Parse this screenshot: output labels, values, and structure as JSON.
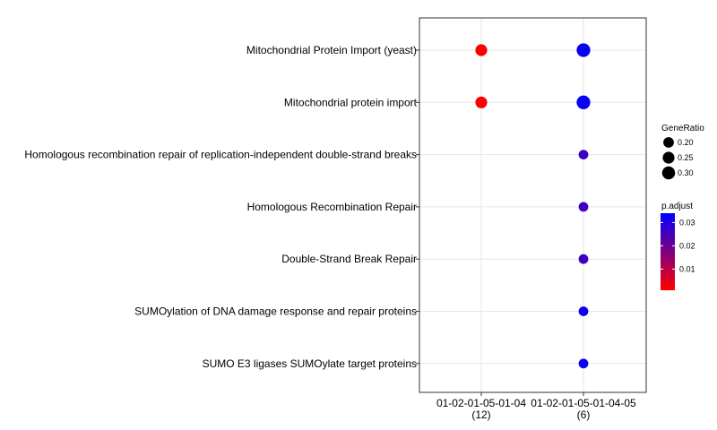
{
  "chart_data": {
    "type": "dotplot",
    "x_categories": [
      "01-02-01-05-01-04\n(12)",
      "01-02-01-05-01-04-05\n(6)"
    ],
    "y_categories": [
      "Mitochondrial Protein Import (yeast)",
      "Mitochondrial protein import",
      "Homologous recombination repair of replication-independent double-strand breaks",
      "Homologous Recombination Repair",
      "Double-Strand Break Repair",
      "SUMOylation of DNA damage response and repair proteins",
      "SUMO E3 ligases SUMOylate target proteins"
    ],
    "points": [
      {
        "x": "01-02-01-05-01-04\n(12)",
        "y": "Mitochondrial Protein Import (yeast)",
        "GeneRatio": 0.25,
        "p_adjust": 0.0009
      },
      {
        "x": "01-02-01-05-01-04-05\n(6)",
        "y": "Mitochondrial Protein Import (yeast)",
        "GeneRatio": 0.333,
        "p_adjust": 0.033
      },
      {
        "x": "01-02-01-05-01-04\n(12)",
        "y": "Mitochondrial protein import",
        "GeneRatio": 0.25,
        "p_adjust": 0.0009
      },
      {
        "x": "01-02-01-05-01-04-05\n(6)",
        "y": "Mitochondrial protein import",
        "GeneRatio": 0.333,
        "p_adjust": 0.033
      },
      {
        "x": "01-02-01-05-01-04-05\n(6)",
        "y": "Homologous recombination repair of replication-independent double-strand breaks",
        "GeneRatio": 0.167,
        "p_adjust": 0.026
      },
      {
        "x": "01-02-01-05-01-04-05\n(6)",
        "y": "Homologous Recombination Repair",
        "GeneRatio": 0.167,
        "p_adjust": 0.026
      },
      {
        "x": "01-02-01-05-01-04-05\n(6)",
        "y": "Double-Strand Break Repair",
        "GeneRatio": 0.167,
        "p_adjust": 0.026
      },
      {
        "x": "01-02-01-05-01-04-05\n(6)",
        "y": "SUMOylation of DNA damage response and repair proteins",
        "GeneRatio": 0.167,
        "p_adjust": 0.033
      },
      {
        "x": "01-02-01-05-01-04-05\n(6)",
        "y": "SUMO E3 ligases SUMOylate target proteins",
        "GeneRatio": 0.167,
        "p_adjust": 0.033
      }
    ],
    "size_legend": {
      "title": "GeneRatio",
      "breaks": [
        0.2,
        0.25,
        0.3
      ],
      "labels": [
        "0.20",
        "0.25",
        "0.30"
      ]
    },
    "color_legend": {
      "title": "p.adjust",
      "breaks": [
        0.01,
        0.02,
        0.03
      ],
      "labels": [
        "0.01",
        "0.02",
        "0.03"
      ],
      "range": [
        0.0009,
        0.034
      ],
      "low_color": "#ff0000",
      "high_color": "#0000ff"
    },
    "grid": true,
    "legend_position": "right"
  }
}
